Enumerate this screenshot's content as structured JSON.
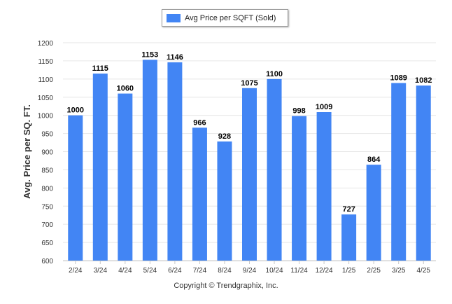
{
  "chart_data": {
    "type": "bar",
    "title": "",
    "xlabel": "",
    "ylabel": "Avg. Price per SQ. FT.",
    "ylim": [
      600,
      1200
    ],
    "yticks": [
      600,
      650,
      700,
      750,
      800,
      850,
      900,
      950,
      1000,
      1050,
      1100,
      1150,
      1200
    ],
    "grid": true,
    "legend_position": "top",
    "categories": [
      "2/24",
      "3/24",
      "4/24",
      "5/24",
      "6/24",
      "7/24",
      "8/24",
      "9/24",
      "10/24",
      "11/24",
      "12/24",
      "1/25",
      "2/25",
      "3/25",
      "4/25"
    ],
    "series": [
      {
        "name": "Avg Price per SQFT (Sold)",
        "color": "#4285F4",
        "values": [
          1000,
          1115,
          1060,
          1153,
          1146,
          966,
          928,
          1075,
          1100,
          998,
          1009,
          727,
          864,
          1089,
          1082
        ]
      }
    ]
  },
  "footer": {
    "copyright": "Copyright © Trendgraphix, Inc."
  }
}
